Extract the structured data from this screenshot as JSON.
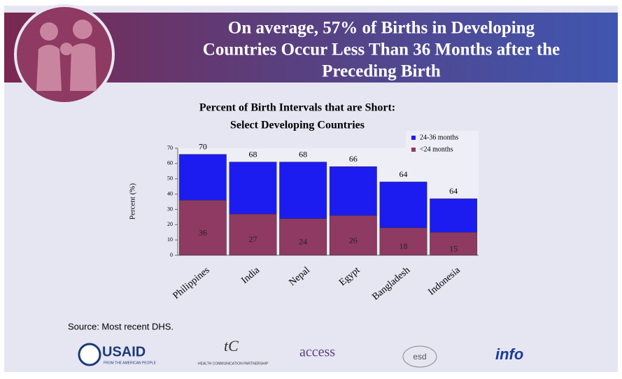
{
  "slide": {
    "title": [
      "On average, 57% of Births in Developing",
      "Countries Occur Less Than 36 Months after the",
      "Preceding Birth"
    ],
    "source": "Source: Most recent DHS.",
    "logos": [
      "USAID",
      "FROM THE AMERICAN PEOPLE",
      "HEALTH COMMUNICATION PARTNERSHIP",
      "access",
      "esd",
      "info"
    ]
  },
  "chart_data": {
    "type": "stacked_bar",
    "title": [
      "Percent of Birth Intervals that are Short:",
      "Select Developing Countries"
    ],
    "ylabel": "Percent (%)",
    "categories": [
      "Philippines",
      "India",
      "Nepal",
      "Egypt",
      "Bangladesh",
      "Indonesia"
    ],
    "series": [
      {
        "name": "<24 months",
        "color": "#8e3a62",
        "values": [
          36,
          27,
          24,
          26,
          18,
          15
        ]
      },
      {
        "name": "24-36 months",
        "color": "#1c1cf0",
        "values": [
          30,
          34,
          37,
          32,
          30,
          22
        ]
      }
    ],
    "annotations": [
      70,
      68,
      68,
      66,
      64,
      64
    ],
    "ylim": [
      0,
      70
    ],
    "yticks": [
      0,
      10,
      20,
      30,
      40,
      50,
      60,
      70
    ],
    "legend": "top-right"
  }
}
